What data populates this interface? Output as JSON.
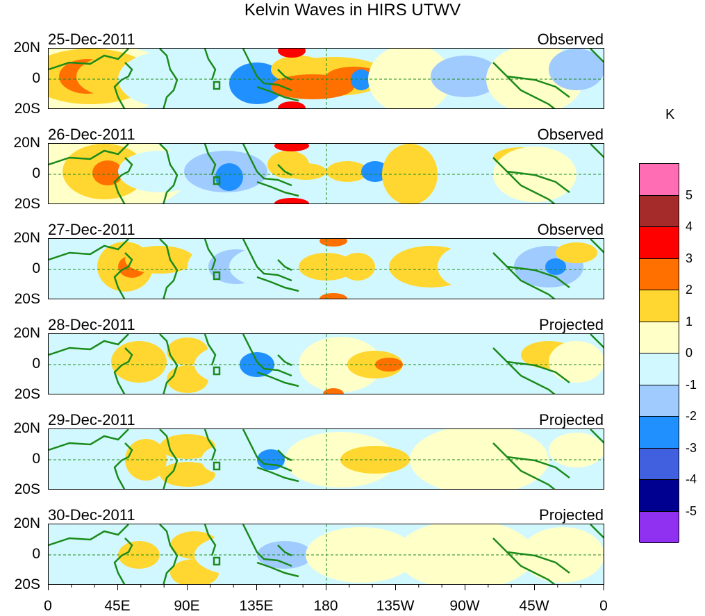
{
  "title": "Kelvin Waves in HIRS UTWV",
  "colorbar": {
    "unit": "K",
    "levels": [
      "5",
      "4",
      "3",
      "2",
      "1",
      "0",
      "-1",
      "-2",
      "-3",
      "-4",
      "-5"
    ],
    "colors": [
      "#ff6eb4",
      "#a52a2a",
      "#ff0000",
      "#ff7000",
      "#ffd730",
      "#ffffc8",
      "#d2f8ff",
      "#a0cbff",
      "#2090ff",
      "#4060e0",
      "#000090",
      "#9030f0"
    ]
  },
  "panels": [
    {
      "date": "25-Dec-2011",
      "status": "Observed"
    },
    {
      "date": "26-Dec-2011",
      "status": "Observed"
    },
    {
      "date": "27-Dec-2011",
      "status": "Observed"
    },
    {
      "date": "28-Dec-2011",
      "status": "Projected"
    },
    {
      "date": "29-Dec-2011",
      "status": "Projected"
    },
    {
      "date": "30-Dec-2011",
      "status": "Projected"
    }
  ],
  "lat_labels": [
    "20N",
    "0",
    "20S"
  ],
  "lon_labels": [
    "0",
    "45E",
    "90E",
    "135E",
    "180",
    "135W",
    "90W",
    "45W",
    "0"
  ]
}
